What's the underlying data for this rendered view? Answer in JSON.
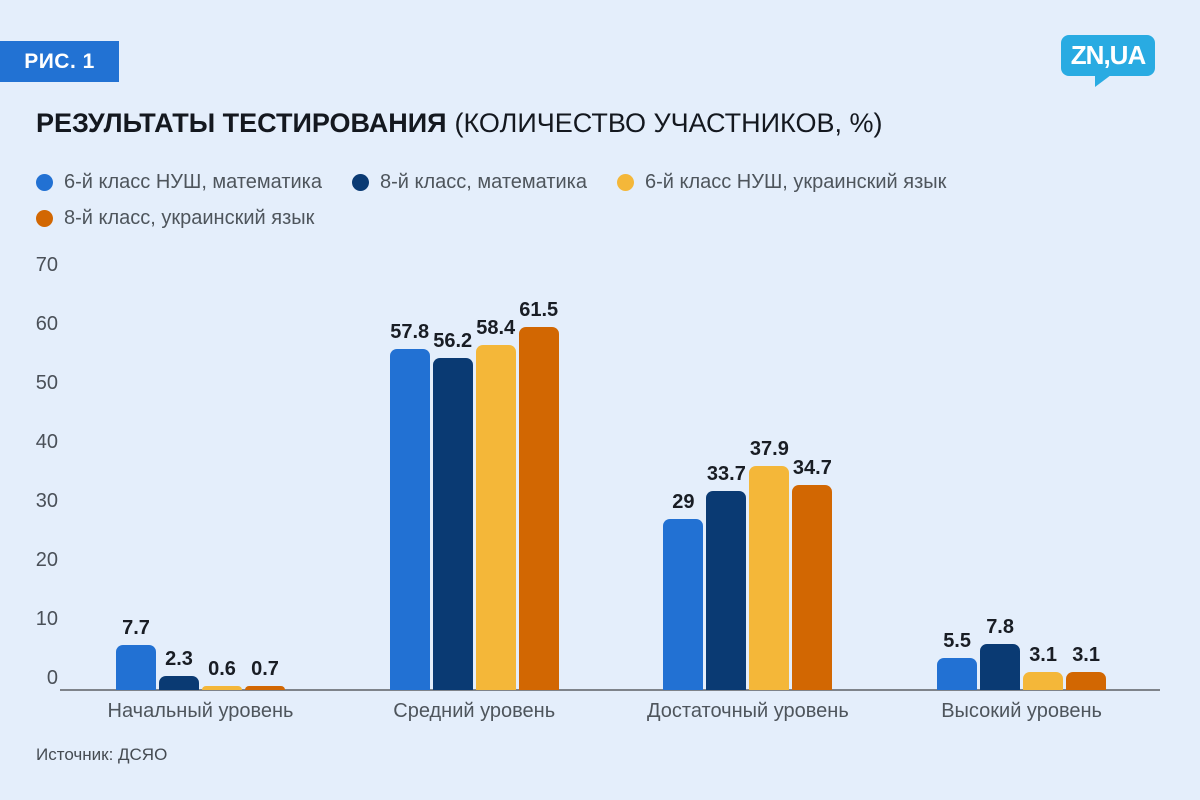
{
  "figure_label": "РИС. 1",
  "logo": {
    "text": "ZN,UA",
    "bg_color": "#29abe2"
  },
  "title": {
    "main": "РЕЗУЛЬТАТЫ ТЕСТИРОВАНИЯ",
    "subtitle": "(КОЛИЧЕСТВО УЧАСТНИКОВ, %)"
  },
  "source": "Источник: ДСЯО",
  "colors": {
    "background": "#e4eefb",
    "badge": "#2272d3",
    "axis_line": "#7e838a",
    "text_dark": "#14181f",
    "text_gray": "#4e555c"
  },
  "chart_data": {
    "type": "bar",
    "categories": [
      "Начальный уровень",
      "Средний уровень",
      "Достаточный уровень",
      "Высокий уровень"
    ],
    "series": [
      {
        "name": "6-й класс НУШ, математика",
        "color": "#2271d3",
        "values": [
          7.7,
          57.8,
          29,
          5.5
        ]
      },
      {
        "name": "8-й класс, математика",
        "color": "#0a3a73",
        "values": [
          2.3,
          56.2,
          33.7,
          7.8
        ]
      },
      {
        "name": "6-й класс НУШ, украинский язык",
        "color": "#f4b739",
        "values": [
          0.6,
          58.4,
          37.9,
          3.1
        ]
      },
      {
        "name": "8-й класс, украинский язык",
        "color": "#d26702",
        "values": [
          0.7,
          61.5,
          34.7,
          3.1
        ]
      }
    ],
    "xlabel": "",
    "ylabel": "",
    "ylim": [
      0,
      70
    ],
    "yticks": [
      0,
      10,
      20,
      30,
      40,
      50,
      60,
      70
    ],
    "grid": false,
    "value_labels": true,
    "legend_position": "top"
  }
}
